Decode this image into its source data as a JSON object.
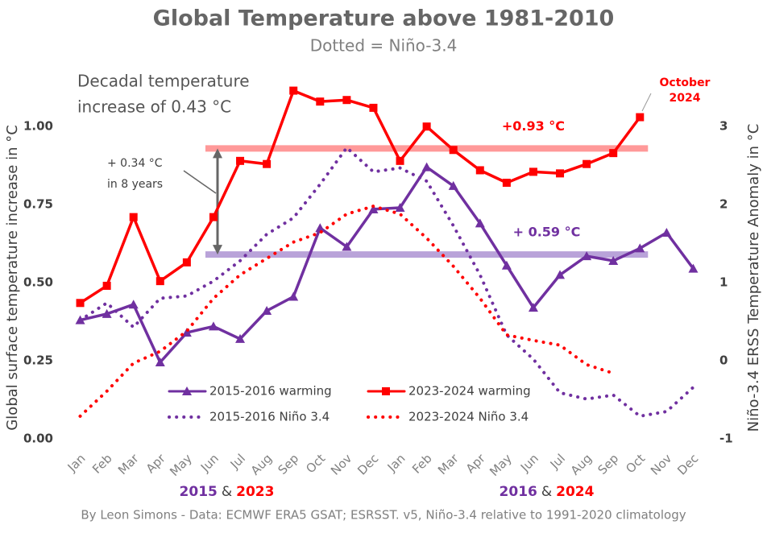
{
  "chart_data": {
    "type": "line",
    "title": "Global Temperature above 1981-2010",
    "subtitle": "Dotted = Niño-3.4",
    "y_label": "Global surface temperature increase in °C",
    "y2_label": "Niño-3.4 ERSS Temperature Anomaly in °C",
    "categories": [
      "Jan",
      "Feb",
      "Mar",
      "Apr",
      "May",
      "Jun",
      "Jul",
      "Aug",
      "Sep",
      "Oct",
      "Nov",
      "Dec",
      "Jan",
      "Feb",
      "Mar",
      "Apr",
      "May",
      "Jun",
      "Jul",
      "Aug",
      "Sep",
      "Oct",
      "Nov",
      "Dec"
    ],
    "x_group_labels": [
      [
        "2015",
        "&",
        "2023"
      ],
      [
        "2016",
        "&",
        "2024"
      ]
    ],
    "ylim": [
      0,
      1.15
    ],
    "yticks": [
      {
        "value": 0,
        "label": "0.00"
      },
      0.25,
      {
        "value": 0.5,
        "label": "0.50"
      },
      0.75,
      {
        "value": 1,
        "label": "1.00"
      }
    ],
    "y2lim": [
      -1,
      3.6
    ],
    "y2ticks": [
      -1,
      0,
      1,
      2,
      3
    ],
    "series": [
      {
        "name": "2015-2016 warming",
        "color": "#7030a0",
        "style": "solid",
        "marker": "triangle",
        "axis": "y",
        "values": [
          0.38,
          0.4,
          0.43,
          0.245,
          0.34,
          0.36,
          0.32,
          0.41,
          0.455,
          0.675,
          0.615,
          0.735,
          0.74,
          0.87,
          0.81,
          0.69,
          0.555,
          0.42,
          0.525,
          0.585,
          0.57,
          0.61,
          0.66,
          0.545
        ]
      },
      {
        "name": "2023-2024 warming",
        "color": "#ff0000",
        "style": "solid",
        "marker": "square",
        "axis": "y",
        "values": [
          0.435,
          0.49,
          0.71,
          0.505,
          0.565,
          0.71,
          0.89,
          0.88,
          1.115,
          1.08,
          1.085,
          1.06,
          0.89,
          1.0,
          0.925,
          0.86,
          0.82,
          0.855,
          0.85,
          0.88,
          0.915,
          1.03,
          null,
          null
        ]
      },
      {
        "name": "2015-2016 Niño 3.4",
        "color": "#7030a0",
        "style": "dotted",
        "axis": "y2",
        "values": [
          0.52,
          0.74,
          0.43,
          0.8,
          0.83,
          1.02,
          1.28,
          1.62,
          1.83,
          2.26,
          2.73,
          2.42,
          2.47,
          2.3,
          1.73,
          1.1,
          0.33,
          0.02,
          -0.41,
          -0.49,
          -0.44,
          -0.71,
          -0.65,
          -0.34
        ]
      },
      {
        "name": "2023-2024 Niño 3.4",
        "color": "#ff0000",
        "style": "dotted",
        "axis": "y2",
        "values": [
          -0.71,
          -0.39,
          -0.03,
          0.12,
          0.38,
          0.8,
          1.1,
          1.31,
          1.52,
          1.64,
          1.88,
          1.98,
          1.88,
          1.57,
          1.21,
          0.8,
          0.33,
          0.26,
          0.2,
          -0.05,
          -0.16,
          null,
          null,
          null
        ]
      }
    ],
    "reference_lines": [
      {
        "value": 0.93,
        "label": "+0.93 °C",
        "color": "#ff9999",
        "text_color": "#ff0000"
      },
      {
        "value": 0.59,
        "label": "+ 0.59 °C",
        "color": "#b9a3d9",
        "text_color": "#7030a0"
      }
    ],
    "annotations": {
      "decadal": [
        "Decadal temperature",
        "increase of 0.43 °C"
      ],
      "eight_years": [
        "+ 0.34 °C",
        "in 8 years"
      ],
      "latest": [
        "October",
        "2024"
      ]
    },
    "footer": "By Leon Simons - Data: ECMWF ERA5 GSAT; ESRSST. v5, Niño-3.4 relative to 1991-2020 climatology"
  }
}
